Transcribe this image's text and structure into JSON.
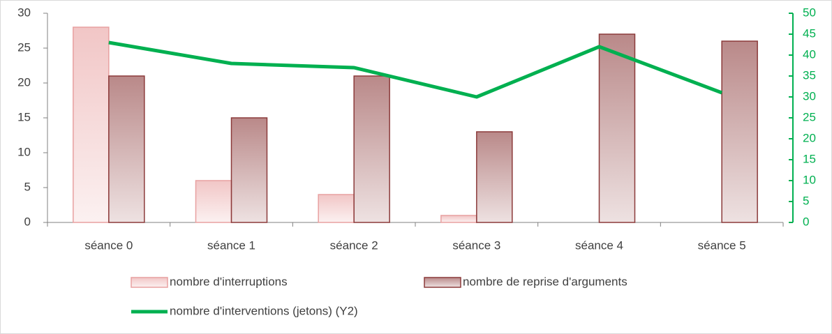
{
  "chart_data": {
    "type": "bar",
    "categories": [
      "séance 0",
      "séance 1",
      "séance 2",
      "séance 3",
      "séance 4",
      "séance 5"
    ],
    "series": [
      {
        "name": "nombre d'interruptions",
        "color": "#e8a0a0",
        "values": [
          28,
          6,
          4,
          1,
          0,
          0
        ]
      },
      {
        "name": "nombre de reprise d'arguments",
        "color": "#8b3a3a",
        "values": [
          21,
          15,
          21,
          13,
          27,
          26
        ]
      },
      {
        "name": "nombre d'interventions (jetons) (Y2)",
        "color": "#00b050",
        "type": "line",
        "axis": "y2",
        "values": [
          43,
          38,
          37,
          30,
          42,
          31
        ]
      }
    ],
    "ylim": [
      0,
      30
    ],
    "yticks": [
      0,
      5,
      10,
      15,
      20,
      25,
      30
    ],
    "y2lim": [
      0,
      50
    ],
    "y2ticks": [
      0,
      5,
      10,
      15,
      20,
      25,
      30,
      35,
      40,
      45,
      50
    ],
    "legend": "bottom"
  }
}
